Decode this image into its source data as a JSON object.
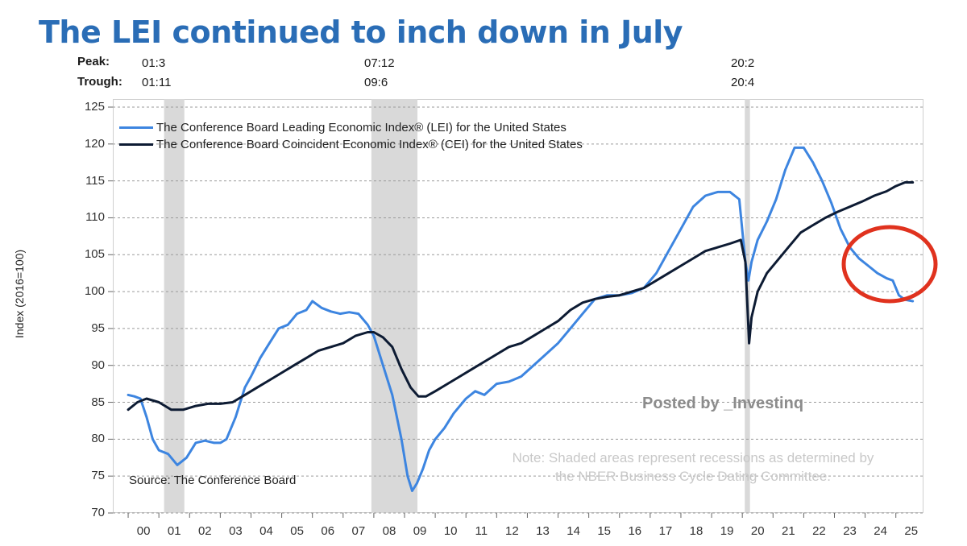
{
  "title": "The LEI continued to inch down in July",
  "peak_label": "Peak:",
  "trough_label": "Trough:",
  "recessions": [
    {
      "peak": "01:3",
      "trough": "01:11",
      "start": 2001.17,
      "end": 2001.83
    },
    {
      "peak": "07:12",
      "trough": "09:6",
      "start": 2007.92,
      "end": 2009.42
    },
    {
      "peak": "20:2",
      "trough": "20:4",
      "start": 2020.08,
      "end": 2020.25
    }
  ],
  "legend": {
    "lei": "The Conference Board Leading Economic Index® (LEI) for the United States",
    "cei": "The Conference Board Coincident Economic Index® (CEI) for the United States"
  },
  "source": "Source: The Conference Board",
  "watermark": "Posted by _Investinq",
  "note_line1": "Note: Shaded areas represent recessions as determined by",
  "note_line2": "the NBER Business Cycle Dating Committee.",
  "colors": {
    "title": "#2a6db6",
    "lei": "#3d85e0",
    "cei": "#0d1b33",
    "recession": "#d9d9d9",
    "highlight_circle": "#e0321e"
  },
  "chart_data": {
    "type": "line",
    "title": "The LEI continued to inch down in July",
    "xlabel": "",
    "ylabel": "Index (2016=100)",
    "ylim": [
      70,
      125
    ],
    "xlim": [
      1999.5,
      2025.9
    ],
    "yticks": [
      70,
      75,
      80,
      85,
      90,
      95,
      100,
      105,
      110,
      115,
      120,
      125
    ],
    "xticks": [
      "00",
      "01",
      "02",
      "03",
      "04",
      "05",
      "06",
      "07",
      "08",
      "09",
      "10",
      "11",
      "12",
      "13",
      "14",
      "15",
      "16",
      "17",
      "18",
      "19",
      "20",
      "21",
      "22",
      "23",
      "24",
      "25"
    ],
    "grid": "horizontal-dashed",
    "series": [
      {
        "name": "The Conference Board Leading Economic Index® (LEI) for the United States",
        "x": [
          2000.0,
          2000.2,
          2000.4,
          2000.6,
          2000.8,
          2001.0,
          2001.3,
          2001.6,
          2001.9,
          2002.2,
          2002.5,
          2002.8,
          2003.0,
          2003.2,
          2003.5,
          2003.8,
          2004.0,
          2004.3,
          2004.6,
          2004.9,
          2005.2,
          2005.5,
          2005.8,
          2006.0,
          2006.3,
          2006.6,
          2006.9,
          2007.2,
          2007.5,
          2007.8,
          2008.0,
          2008.3,
          2008.6,
          2008.9,
          2009.1,
          2009.25,
          2009.4,
          2009.6,
          2009.8,
          2010.0,
          2010.3,
          2010.6,
          2011.0,
          2011.3,
          2011.6,
          2012.0,
          2012.4,
          2012.8,
          2013.2,
          2013.6,
          2014.0,
          2014.4,
          2014.8,
          2015.2,
          2015.6,
          2016.0,
          2016.4,
          2016.8,
          2017.2,
          2017.6,
          2018.0,
          2018.4,
          2018.8,
          2019.2,
          2019.6,
          2019.9,
          2020.1,
          2020.2,
          2020.3,
          2020.5,
          2020.8,
          2021.1,
          2021.4,
          2021.7,
          2022.0,
          2022.3,
          2022.6,
          2022.9,
          2023.2,
          2023.5,
          2023.8,
          2024.1,
          2024.4,
          2024.7,
          2024.9,
          2025.1,
          2025.3,
          2025.55
        ],
        "values": [
          86.0,
          85.8,
          85.5,
          83.0,
          80.0,
          78.5,
          78.0,
          76.5,
          77.5,
          79.5,
          79.8,
          79.5,
          79.5,
          80.0,
          83.0,
          87.0,
          88.5,
          91.0,
          93.0,
          95.0,
          95.5,
          97.0,
          97.5,
          98.7,
          97.8,
          97.3,
          97.0,
          97.2,
          97.0,
          95.5,
          94.0,
          90.0,
          86.0,
          80.0,
          75.0,
          73.0,
          74.0,
          76.0,
          78.5,
          80.0,
          81.5,
          83.5,
          85.5,
          86.5,
          86.0,
          87.5,
          87.8,
          88.5,
          90.0,
          91.5,
          93.0,
          95.0,
          97.0,
          99.0,
          99.5,
          99.5,
          99.8,
          100.5,
          102.5,
          105.5,
          108.5,
          111.5,
          113.0,
          113.5,
          113.5,
          112.5,
          104.0,
          101.5,
          104.0,
          107.0,
          109.5,
          112.5,
          116.5,
          119.5,
          119.5,
          117.5,
          115.0,
          112.0,
          108.5,
          106.0,
          104.5,
          103.5,
          102.5,
          101.8,
          101.5,
          99.5,
          98.9,
          98.7
        ]
      },
      {
        "name": "The Conference Board Coincident Economic Index® (CEI) for the United States",
        "x": [
          2000.0,
          2000.3,
          2000.6,
          2001.0,
          2001.4,
          2001.8,
          2002.2,
          2002.6,
          2003.0,
          2003.4,
          2003.8,
          2004.2,
          2004.6,
          2005.0,
          2005.4,
          2005.8,
          2006.2,
          2006.6,
          2007.0,
          2007.4,
          2007.8,
          2008.0,
          2008.3,
          2008.6,
          2008.9,
          2009.2,
          2009.45,
          2009.7,
          2010.0,
          2010.4,
          2010.8,
          2011.2,
          2011.6,
          2012.0,
          2012.4,
          2012.8,
          2013.2,
          2013.6,
          2014.0,
          2014.4,
          2014.8,
          2015.2,
          2015.6,
          2016.0,
          2016.4,
          2016.8,
          2017.2,
          2017.6,
          2018.0,
          2018.4,
          2018.8,
          2019.2,
          2019.6,
          2019.95,
          2020.1,
          2020.22,
          2020.3,
          2020.5,
          2020.8,
          2021.1,
          2021.5,
          2021.9,
          2022.3,
          2022.7,
          2023.1,
          2023.5,
          2023.9,
          2024.3,
          2024.7,
          2025.0,
          2025.3,
          2025.55
        ],
        "values": [
          84.0,
          85.0,
          85.5,
          85.0,
          84.0,
          84.0,
          84.5,
          84.8,
          84.8,
          85.0,
          86.0,
          87.0,
          88.0,
          89.0,
          90.0,
          91.0,
          92.0,
          92.5,
          93.0,
          94.0,
          94.5,
          94.5,
          93.8,
          92.5,
          89.5,
          87.0,
          85.8,
          85.8,
          86.5,
          87.5,
          88.5,
          89.5,
          90.5,
          91.5,
          92.5,
          93.0,
          94.0,
          95.0,
          96.0,
          97.5,
          98.5,
          99.0,
          99.3,
          99.5,
          100.0,
          100.5,
          101.5,
          102.5,
          103.5,
          104.5,
          105.5,
          106.0,
          106.5,
          107.0,
          104.0,
          93.0,
          96.5,
          100.0,
          102.5,
          104.0,
          106.0,
          108.0,
          109.0,
          110.0,
          110.8,
          111.5,
          112.2,
          113.0,
          113.6,
          114.3,
          114.8,
          114.8
        ]
      }
    ],
    "annotations": [
      "Posted by _Investinq",
      "Source: The Conference Board"
    ]
  }
}
